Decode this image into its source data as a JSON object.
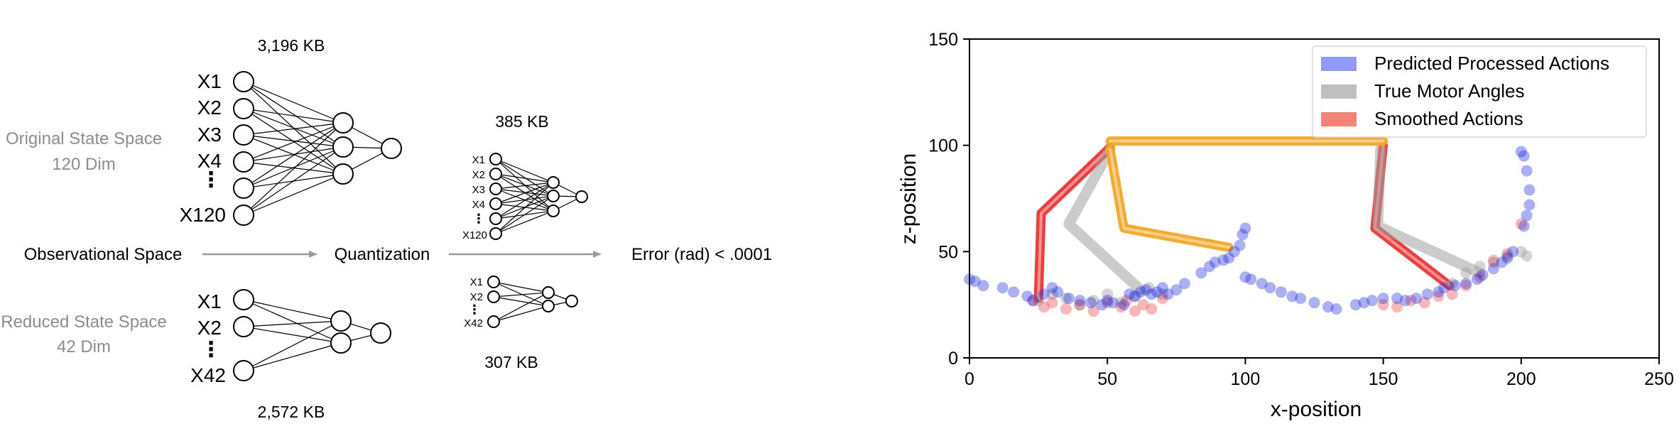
{
  "diagram": {
    "top_network": {
      "size_label": "3,196 KB",
      "input_labels": [
        "X1",
        "X2",
        "X3",
        "X4",
        "X120"
      ],
      "caption_line1": "Original State Space",
      "caption_line2": "120 Dim"
    },
    "bottom_network": {
      "size_label": "2,572 KB",
      "input_labels": [
        "X1",
        "X2",
        "X42"
      ],
      "caption_line1": "Reduced State Space",
      "caption_line2": "42 Dim"
    },
    "quant_top": {
      "size_label": "385 KB",
      "input_labels": [
        "X1",
        "X2",
        "X3",
        "X4",
        "X120"
      ]
    },
    "quant_bottom": {
      "size_label": "307 KB",
      "input_labels": [
        "X1",
        "X2",
        "X42"
      ]
    },
    "flow": {
      "start": "Observational Space",
      "middle": "Quantization",
      "end": "Error (rad) < .0001"
    }
  },
  "chart_data": {
    "type": "scatter",
    "xlabel": "x-position",
    "ylabel": "z-position",
    "xlim": [
      0,
      250
    ],
    "ylim": [
      0,
      150
    ],
    "xticks": [
      0,
      50,
      100,
      150,
      200,
      250
    ],
    "yticks": [
      0,
      50,
      100,
      150
    ],
    "grid": false,
    "legend_position": "top-right",
    "legend": [
      {
        "label": "Predicted Processed Actions",
        "color": "#6b78f5"
      },
      {
        "label": "True Motor Angles",
        "color": "#a9a9a9"
      },
      {
        "label": "Smoothed Actions",
        "color": "#f05a4a"
      }
    ],
    "colors": {
      "predicted": "#2030e0",
      "true": "#a0a0a0",
      "smoothed": "#ee3333",
      "top_link": "#f5a623"
    },
    "series": [
      {
        "name": "Predicted Processed Actions",
        "x": [
          0,
          2,
          5,
          12,
          16,
          21,
          23,
          27,
          30,
          32,
          36,
          40,
          44,
          48,
          50,
          52,
          56,
          58,
          60,
          62,
          64,
          66,
          68,
          70,
          72,
          75,
          78,
          84,
          87,
          89,
          92,
          94,
          96,
          98,
          99,
          100,
          100,
          102,
          106,
          109,
          113,
          117,
          120,
          125,
          130,
          133,
          140,
          143,
          146,
          150,
          155,
          158,
          162,
          166,
          170,
          172,
          176,
          180,
          184,
          186,
          190,
          193,
          195,
          197,
          200,
          201,
          202,
          203,
          203,
          202,
          201
        ],
        "y": [
          37,
          36,
          34,
          33,
          31,
          29,
          27,
          30,
          33,
          31,
          28,
          27,
          26,
          25,
          27,
          26,
          25,
          30,
          29,
          31,
          32,
          30,
          31,
          33,
          30,
          32,
          35,
          40,
          43,
          45,
          46,
          47,
          50,
          53,
          58,
          61,
          38,
          37,
          35,
          33,
          31,
          29,
          28,
          26,
          24,
          23,
          25,
          26,
          27,
          28,
          28,
          27,
          28,
          30,
          31,
          33,
          34,
          35,
          37,
          39,
          42,
          45,
          47,
          50,
          97,
          95,
          88,
          79,
          72,
          67,
          62
        ]
      },
      {
        "name": "True Motor Angles",
        "x": [
          25,
          30,
          35,
          40,
          45,
          50,
          55,
          60,
          65,
          70,
          175,
          180,
          185,
          190,
          195,
          200,
          202
        ],
        "y": [
          27,
          30,
          28,
          25,
          27,
          30,
          26,
          29,
          33,
          30,
          35,
          40,
          43,
          46,
          48,
          50,
          48
        ]
      },
      {
        "name": "Smoothed Actions",
        "x": [
          23,
          27,
          30,
          35,
          40,
          45,
          50,
          55,
          57,
          60,
          63,
          66,
          70,
          150,
          155,
          160,
          165,
          170,
          175,
          180,
          185,
          190,
          195,
          200
        ],
        "y": [
          27,
          24,
          26,
          23,
          25,
          22,
          26,
          24,
          27,
          22,
          25,
          23,
          28,
          25,
          24,
          27,
          26,
          29,
          30,
          34,
          38,
          45,
          49,
          63
        ]
      }
    ],
    "overlay_paths": [
      {
        "name": "smoothed-left-leg",
        "color": "#ee3333",
        "points": [
          [
            25,
            28
          ],
          [
            26,
            68
          ],
          [
            51,
            99
          ]
        ]
      },
      {
        "name": "true-left-leg",
        "color": "#a0a0a0",
        "points": [
          [
            62,
            32
          ],
          [
            36,
            63
          ],
          [
            51,
            98
          ]
        ]
      },
      {
        "name": "smoothed-right-leg",
        "color": "#ee3333",
        "points": [
          [
            150,
            100
          ],
          [
            147,
            61
          ],
          [
            174,
            34
          ]
        ]
      },
      {
        "name": "true-right-leg",
        "color": "#a0a0a0",
        "points": [
          [
            149,
            98
          ],
          [
            148,
            62
          ],
          [
            185,
            40
          ]
        ]
      },
      {
        "name": "top-link-bar",
        "color": "#f5a623",
        "points": [
          [
            51,
            102
          ],
          [
            150,
            102
          ]
        ]
      },
      {
        "name": "top-link-arm",
        "color": "#f5a623",
        "points": [
          [
            51,
            98
          ],
          [
            56,
            61
          ],
          [
            94,
            52
          ]
        ]
      }
    ]
  }
}
